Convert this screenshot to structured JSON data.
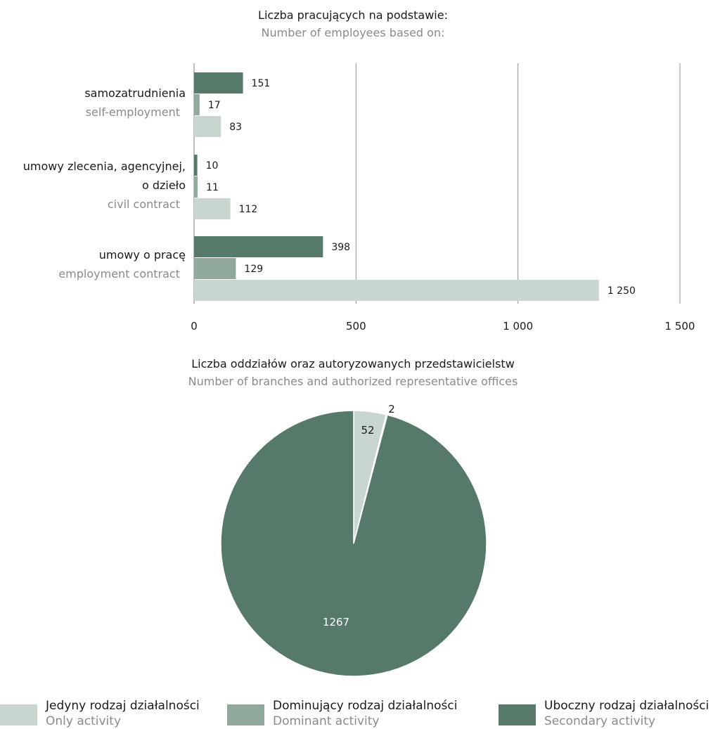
{
  "colors": {
    "secondary": "#56796a",
    "dominant": "#91a99d",
    "only": "#c9d5cf",
    "grid": "#8c8c8c",
    "axis": "#7a7a7a"
  },
  "chart_data": [
    {
      "type": "bar",
      "orientation": "horizontal",
      "title": "Liczba pracujących na podstawie:",
      "subtitle": "Number of employees based on:",
      "xlim": [
        0,
        1500
      ],
      "ticks": [
        {
          "value": 0,
          "label": "0"
        },
        {
          "value": 500,
          "label": "500"
        },
        {
          "value": 1000,
          "label": "1 000"
        },
        {
          "value": 1500,
          "label": "1 500"
        }
      ],
      "grid": true,
      "categories": [
        {
          "lines_pl": [
            "samozatrudnienia"
          ],
          "lines_en": [
            "self-employment"
          ]
        },
        {
          "lines_pl": [
            "umowy zlecenia, agencyjnej,",
            "o dzieło"
          ],
          "lines_en": [
            "civil contract"
          ]
        },
        {
          "lines_pl": [
            "umowy o pracę"
          ],
          "lines_en": [
            "employment contract"
          ]
        }
      ],
      "series": [
        {
          "name": "Uboczny rodzaj działalności",
          "color": "#56796a",
          "values": [
            151,
            10,
            398
          ],
          "labels": [
            "151",
            "10",
            "398"
          ]
        },
        {
          "name": "Dominujący rodzaj działalności",
          "color": "#91a99d",
          "values": [
            17,
            11,
            129
          ],
          "labels": [
            "17",
            "11",
            "129"
          ]
        },
        {
          "name": "Jedyny rodzaj działalności",
          "color": "#c9d5cf",
          "values": [
            83,
            112,
            1250
          ],
          "labels": [
            "83",
            "112",
            "1 250"
          ]
        }
      ]
    },
    {
      "type": "pie",
      "title": "Liczba oddziałów oraz autoryzowanych przedstawicielstw",
      "subtitle": "Number of branches and authorized representative offices",
      "slices": [
        {
          "name": "Jedyny rodzaj działalności",
          "value": 52,
          "label": "52",
          "color": "#c9d5cf"
        },
        {
          "name": "Dominujący rodzaj działalności",
          "value": 2,
          "label": "2",
          "color": "#91a99d"
        },
        {
          "name": "Uboczny rodzaj działalności",
          "value": 1267,
          "label": "1267",
          "color": "#56796a"
        }
      ]
    }
  ],
  "legend": [
    {
      "pl": "Jedyny rodzaj działalności",
      "en": "Only activity",
      "color": "#c9d5cf"
    },
    {
      "pl": "Dominujący rodzaj działalności",
      "en": "Dominant activity",
      "color": "#91a99d"
    },
    {
      "pl": "Uboczny rodzaj działalności",
      "en": "Secondary activity",
      "color": "#56796a"
    }
  ]
}
